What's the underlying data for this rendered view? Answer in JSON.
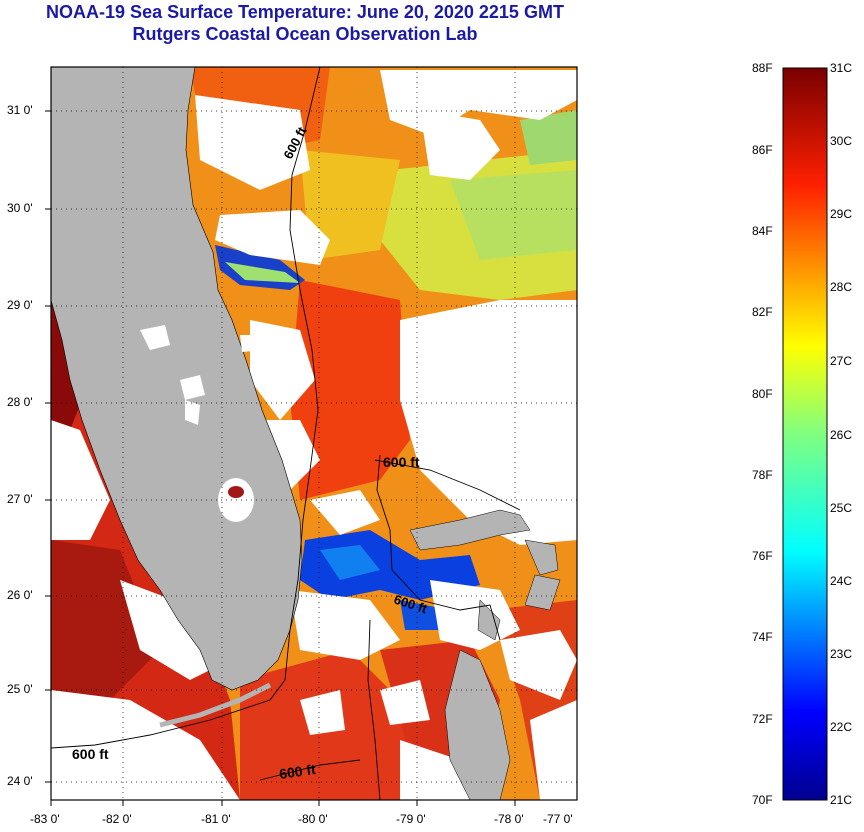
{
  "title": {
    "line1": "NOAA-19 Sea Surface Temperature:  June 20, 2020 2215 GMT",
    "line2": "Rutgers Coastal Ocean Observation Lab"
  },
  "map": {
    "lat_labels": [
      "31 0'",
      "30 0'",
      "29 0'",
      "28 0'",
      "27 0'",
      "26 0'",
      "25 0'",
      "24 0'"
    ],
    "lon_labels": [
      "-83 0'",
      "-82 0'",
      "-81 0'",
      "-80 0'",
      "-79 0'",
      "-78 0'",
      "-77 0'"
    ],
    "isobath_labels": [
      "600 ft",
      "600 ft",
      "600 ft",
      "600 ft",
      "600 ft"
    ]
  },
  "colorbar": {
    "fahrenheit_labels": [
      "88F",
      "86F",
      "84F",
      "82F",
      "80F",
      "78F",
      "76F",
      "74F",
      "72F",
      "70F"
    ],
    "celsius_labels": [
      "31C",
      "30C",
      "29C",
      "28C",
      "27C",
      "26C",
      "25C",
      "24C",
      "23C",
      "22C",
      "21C"
    ]
  },
  "colors": {
    "title": "#1a1aa6",
    "land": "#b4b4b4",
    "warm_max": "#7a0000",
    "cold_min": "#00008f"
  }
}
